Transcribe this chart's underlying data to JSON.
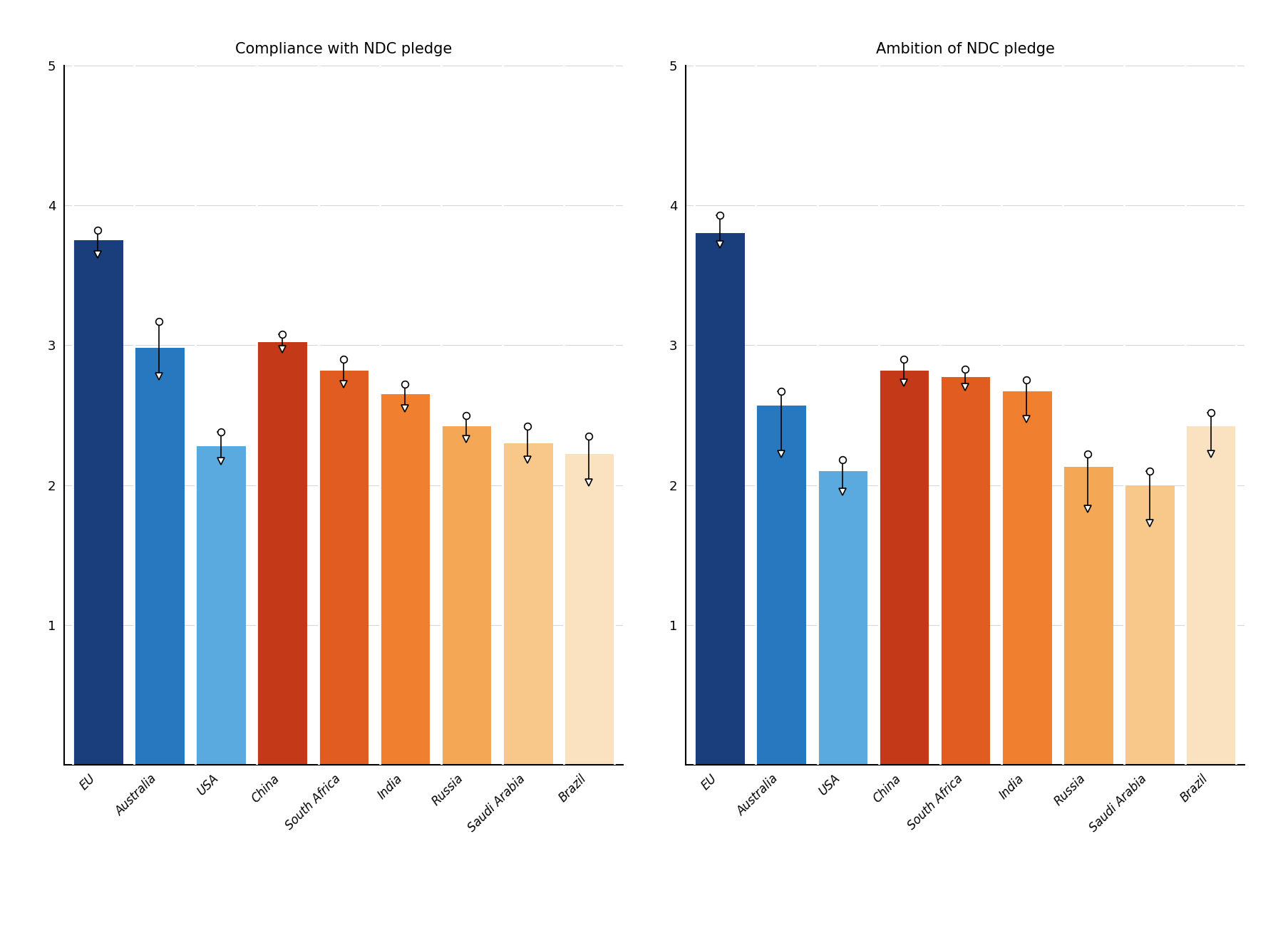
{
  "categories": [
    "EU",
    "Australia",
    "USA",
    "China",
    "South Africa",
    "India",
    "Russia",
    "Saudi Arabia",
    "Brazil"
  ],
  "compliance": {
    "bars": [
      3.75,
      2.98,
      2.28,
      3.02,
      2.82,
      2.65,
      2.42,
      2.3,
      2.22
    ],
    "upper_ci": [
      3.82,
      3.17,
      2.38,
      3.08,
      2.9,
      2.72,
      2.5,
      2.42,
      2.35
    ],
    "lower_ci": [
      3.65,
      2.78,
      2.17,
      2.97,
      2.72,
      2.55,
      2.33,
      2.18,
      2.02
    ],
    "title": "Compliance with NDC pledge"
  },
  "ambition": {
    "bars": [
      3.8,
      2.57,
      2.1,
      2.82,
      2.77,
      2.67,
      2.13,
      2.0,
      2.42
    ],
    "upper_ci": [
      3.93,
      2.67,
      2.18,
      2.9,
      2.83,
      2.75,
      2.22,
      2.1,
      2.52
    ],
    "lower_ci": [
      3.72,
      2.22,
      1.95,
      2.73,
      2.7,
      2.47,
      1.83,
      1.73,
      2.22
    ],
    "title": "Ambition of NDC pledge"
  },
  "colors": {
    "EU": "#1a3d7c",
    "Australia": "#2878c0",
    "USA": "#5aaae0",
    "China": "#c43a18",
    "South Africa": "#e05c20",
    "India": "#f08030",
    "Russia": "#f4a855",
    "Saudi Arabia": "#f8c88a",
    "Brazil": "#fae2c0"
  },
  "ylim": [
    0,
    5
  ],
  "yticks": [
    1,
    2,
    3,
    4,
    5
  ],
  "background_color": "#ffffff",
  "title_fontsize": 15,
  "tick_fontsize": 13,
  "label_fontsize": 12,
  "bar_separator_color": "#ffffff",
  "grid_color": "#d8d8d8",
  "spine_color": "#000000"
}
